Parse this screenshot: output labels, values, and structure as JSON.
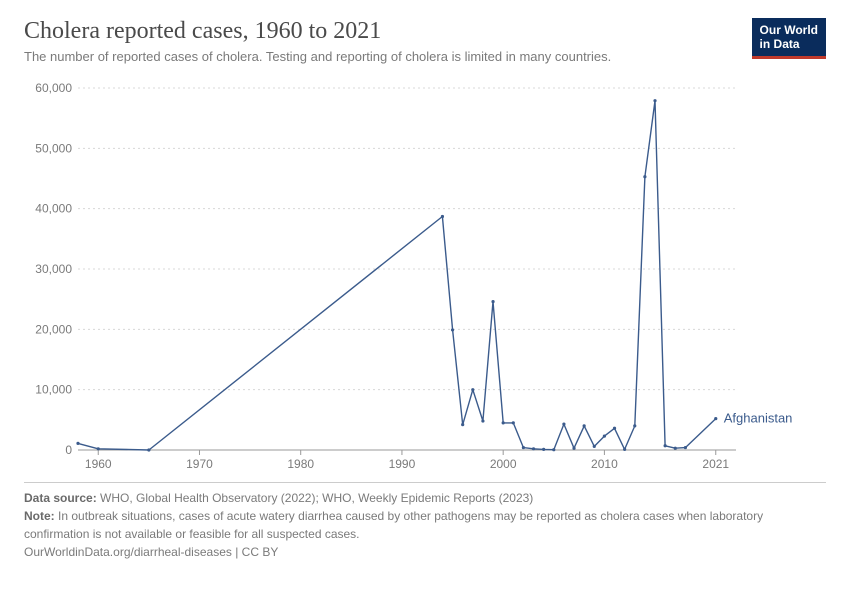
{
  "header": {
    "title": "Cholera reported cases, 1960 to 2021",
    "subtitle": "The number of reported cases of cholera. Testing and reporting of cholera is limited in many countries.",
    "logo_line1": "Our World",
    "logo_line2": "in Data"
  },
  "chart": {
    "type": "line",
    "background_color": "#ffffff",
    "grid_color": "#d8d8d8",
    "axis_text_color": "#7a7a7a",
    "xlim": [
      1958,
      2023
    ],
    "ylim": [
      0,
      60000
    ],
    "x_ticks": [
      1960,
      1970,
      1980,
      1990,
      2000,
      2010,
      2021
    ],
    "y_ticks": [
      0,
      10000,
      20000,
      30000,
      40000,
      50000,
      60000
    ],
    "y_tick_labels": [
      "0",
      "10,000",
      "20,000",
      "30,000",
      "40,000",
      "50,000",
      "60,000"
    ],
    "tick_fontsize": 12,
    "series": [
      {
        "name": "Afghanistan",
        "label": "Afghanistan",
        "color": "#3b5b8c",
        "line_width": 1.4,
        "marker": "circle",
        "marker_size": 3.2,
        "data": [
          {
            "x": 1958,
            "y": 1100
          },
          {
            "x": 1960,
            "y": 200
          },
          {
            "x": 1965,
            "y": 0
          },
          {
            "x": 1994,
            "y": 38700
          },
          {
            "x": 1995,
            "y": 19900
          },
          {
            "x": 1996,
            "y": 4200
          },
          {
            "x": 1997,
            "y": 10000
          },
          {
            "x": 1998,
            "y": 4800
          },
          {
            "x": 1999,
            "y": 24600
          },
          {
            "x": 2000,
            "y": 4500
          },
          {
            "x": 2001,
            "y": 4500
          },
          {
            "x": 2002,
            "y": 400
          },
          {
            "x": 2003,
            "y": 200
          },
          {
            "x": 2004,
            "y": 100
          },
          {
            "x": 2005,
            "y": 50
          },
          {
            "x": 2006,
            "y": 4300
          },
          {
            "x": 2007,
            "y": 300
          },
          {
            "x": 2008,
            "y": 4000
          },
          {
            "x": 2009,
            "y": 600
          },
          {
            "x": 2010,
            "y": 2300
          },
          {
            "x": 2011,
            "y": 3600
          },
          {
            "x": 2012,
            "y": 100
          },
          {
            "x": 2013,
            "y": 4000
          },
          {
            "x": 2014,
            "y": 45300
          },
          {
            "x": 2015,
            "y": 57900
          },
          {
            "x": 2016,
            "y": 700
          },
          {
            "x": 2017,
            "y": 300
          },
          {
            "x": 2018,
            "y": 400
          },
          {
            "x": 2021,
            "y": 5200
          }
        ]
      }
    ]
  },
  "footer": {
    "data_source_label": "Data source:",
    "data_source": "WHO, Global Health Observatory (2022); WHO, Weekly Epidemic Reports (2023)",
    "note_label": "Note:",
    "note": "In outbreak situations, cases of acute watery diarrhea caused by other pathogens may be reported as cholera cases when laboratory confirmation is not available or feasible for all suspected cases.",
    "url_license": "OurWorldinData.org/diarrheal-diseases | CC BY"
  }
}
